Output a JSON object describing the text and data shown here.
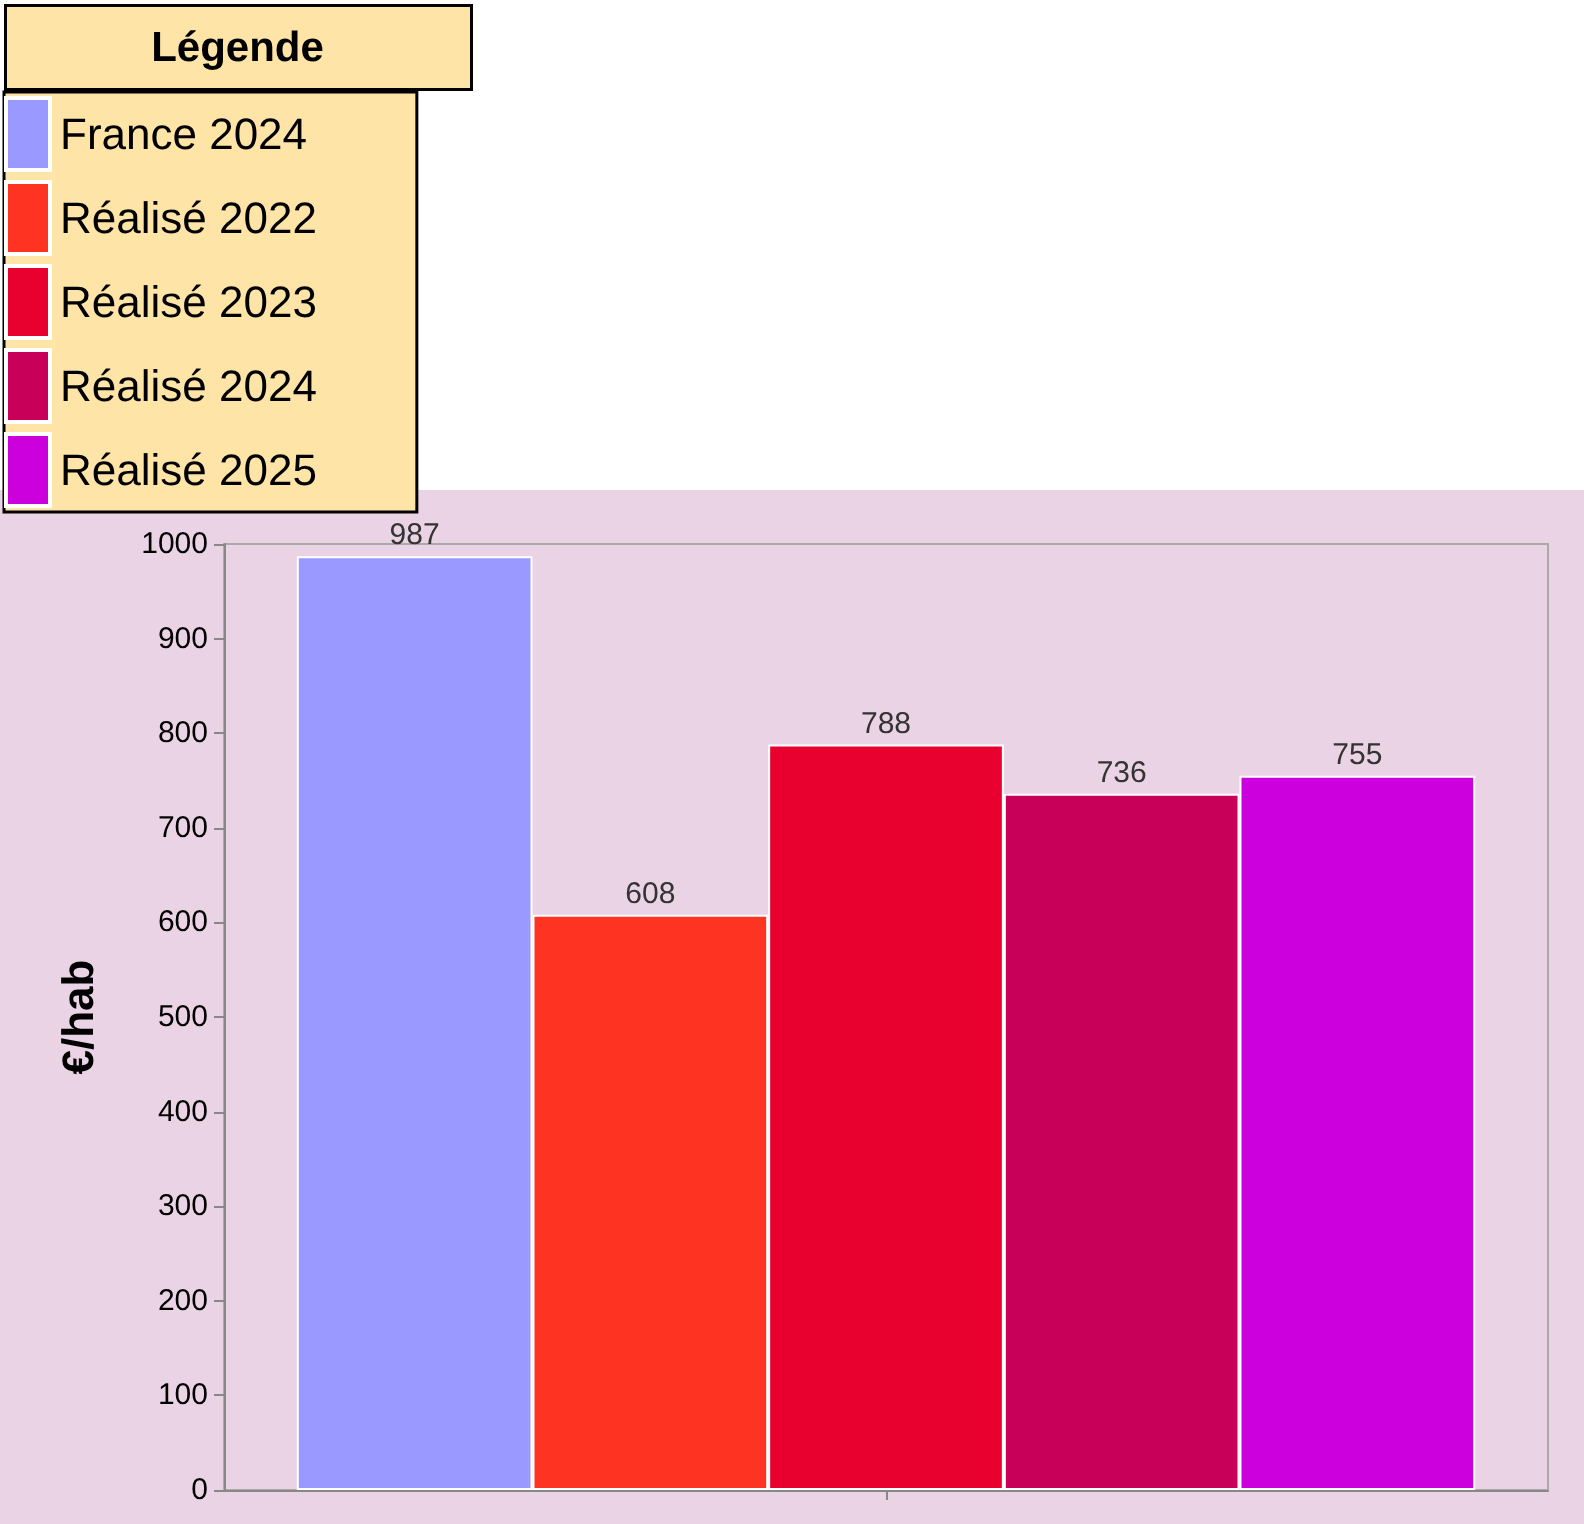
{
  "chart_data": {
    "type": "bar",
    "ylabel": "€/hab",
    "legend_title": "Légende",
    "categories": [
      null
    ],
    "series": [
      {
        "name": "France 2024",
        "color": "#9999ff",
        "values": [
          987
        ]
      },
      {
        "name": "Réalisé 2022",
        "color": "#ff3322",
        "values": [
          608
        ]
      },
      {
        "name": "Réalisé 2023",
        "color": "#e8002e",
        "values": [
          788
        ]
      },
      {
        "name": "Réalisé 2024",
        "color": "#c8005a",
        "values": [
          736
        ]
      },
      {
        "name": "Réalisé 2025",
        "color": "#cc00dd",
        "values": [
          755
        ]
      }
    ],
    "ylim": [
      0,
      1000
    ],
    "yticks": [
      0,
      100,
      200,
      300,
      400,
      500,
      600,
      700,
      800,
      900,
      1000
    ],
    "grid": false,
    "legend": "top left",
    "data_labels": true
  }
}
